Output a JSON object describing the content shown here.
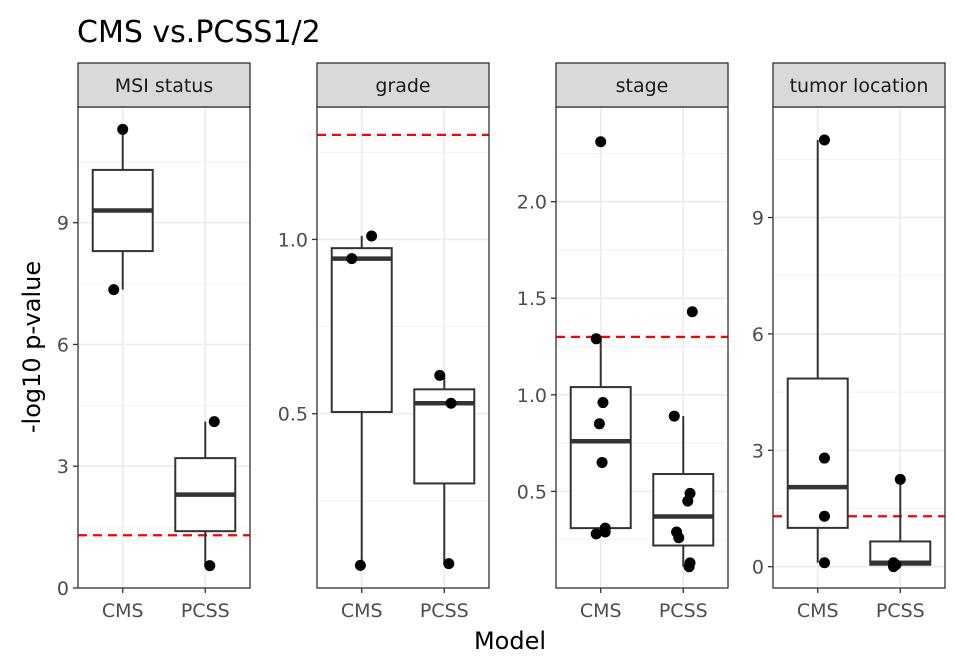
{
  "chart_data": {
    "type": "box",
    "title": "CMS vs.PCSS1/2",
    "xlabel": "Model",
    "ylabel": "-log10 p-value",
    "categories": [
      "CMS",
      "PCSS"
    ],
    "threshold": 1.3,
    "colors": {
      "threshold_line": "#ff0000",
      "box": "#333333",
      "point": "#000000",
      "strip_fill": "#d9d9d9",
      "grid_major": "#ebebeb",
      "grid_minor": "#f2f2f2",
      "panel_border": "#333333"
    },
    "panels": [
      {
        "label": "MSI status",
        "ylim": [
          0,
          11.85
        ],
        "yticks": [
          0,
          3,
          6,
          9
        ],
        "ytick_labels": [
          "0",
          "3",
          "6",
          "9"
        ],
        "groups": [
          {
            "category": "CMS",
            "box": {
              "min": 7.35,
              "q1": 8.3,
              "median": 9.3,
              "q3": 10.3,
              "max": 11.3
            },
            "points": [
              {
                "x": 0.0,
                "y": 11.3
              },
              {
                "x": -0.2,
                "y": 7.35
              }
            ]
          },
          {
            "category": "PCSS",
            "box": {
              "min": 0.55,
              "q1": 1.4,
              "median": 2.3,
              "q3": 3.2,
              "max": 4.1
            },
            "points": [
              {
                "x": 0.2,
                "y": 4.1
              },
              {
                "x": 0.1,
                "y": 0.55
              }
            ]
          }
        ]
      },
      {
        "label": "grade",
        "ylim": [
          0.0,
          1.38
        ],
        "yticks": [
          0.5,
          1.0
        ],
        "ytick_labels": [
          "0.5",
          "1.0"
        ],
        "groups": [
          {
            "category": "CMS",
            "box": {
              "min": 0.065,
              "q1": 0.505,
              "median": 0.945,
              "q3": 0.975,
              "max": 1.01
            },
            "points": [
              {
                "x": -0.22,
                "y": 0.945
              },
              {
                "x": 0.22,
                "y": 1.01
              },
              {
                "x": -0.03,
                "y": 0.065
              }
            ]
          },
          {
            "category": "PCSS",
            "box": {
              "min": 0.07,
              "q1": 0.3,
              "median": 0.53,
              "q3": 0.57,
              "max": 0.61
            },
            "points": [
              {
                "x": -0.1,
                "y": 0.61
              },
              {
                "x": 0.15,
                "y": 0.53
              },
              {
                "x": 0.1,
                "y": 0.07
              }
            ]
          }
        ]
      },
      {
        "label": "stage",
        "ylim": [
          0.0,
          2.49
        ],
        "yticks": [
          0.5,
          1.0,
          1.5,
          2.0
        ],
        "ytick_labels": [
          "0.5",
          "1.0",
          "1.5",
          "2.0"
        ],
        "groups": [
          {
            "category": "CMS",
            "box": {
              "min": 0.28,
              "q1": 0.31,
              "median": 0.76,
              "q3": 1.04,
              "max": 1.29
            },
            "points": [
              {
                "x": 0.0,
                "y": 2.31
              },
              {
                "x": -0.1,
                "y": 1.29
              },
              {
                "x": 0.05,
                "y": 0.96
              },
              {
                "x": -0.03,
                "y": 0.85
              },
              {
                "x": 0.03,
                "y": 0.65
              },
              {
                "x": 0.1,
                "y": 0.31
              },
              {
                "x": 0.1,
                "y": 0.29
              },
              {
                "x": -0.1,
                "y": 0.28
              }
            ]
          },
          {
            "category": "PCSS",
            "box": {
              "min": 0.11,
              "q1": 0.22,
              "median": 0.37,
              "q3": 0.59,
              "max": 0.89
            },
            "points": [
              {
                "x": 0.2,
                "y": 1.43
              },
              {
                "x": -0.2,
                "y": 0.89
              },
              {
                "x": 0.15,
                "y": 0.49
              },
              {
                "x": 0.1,
                "y": 0.45
              },
              {
                "x": -0.15,
                "y": 0.29
              },
              {
                "x": -0.1,
                "y": 0.26
              },
              {
                "x": 0.15,
                "y": 0.13
              },
              {
                "x": 0.13,
                "y": 0.11
              }
            ]
          }
        ]
      },
      {
        "label": "tumor location",
        "ylim": [
          -0.55,
          11.85
        ],
        "yticks": [
          0,
          3,
          6,
          9
        ],
        "ytick_labels": [
          "0",
          "3",
          "6",
          "9"
        ],
        "groups": [
          {
            "category": "CMS",
            "box": {
              "min": 0.1,
              "q1": 1.0,
              "median": 2.05,
              "q3": 4.85,
              "max": 11.0
            },
            "points": [
              {
                "x": 0.15,
                "y": 11.0
              },
              {
                "x": 0.15,
                "y": 2.8
              },
              {
                "x": 0.15,
                "y": 1.3
              },
              {
                "x": 0.15,
                "y": 0.1
              }
            ]
          },
          {
            "category": "PCSS",
            "box": {
              "min": 0.0,
              "q1": 0.05,
              "median": 0.1,
              "q3": 0.65,
              "max": 2.25
            },
            "points": [
              {
                "x": 0.0,
                "y": 2.25
              },
              {
                "x": -0.15,
                "y": 0.1
              },
              {
                "x": -0.1,
                "y": 0.05
              },
              {
                "x": -0.15,
                "y": 0.0
              }
            ]
          }
        ]
      }
    ]
  }
}
